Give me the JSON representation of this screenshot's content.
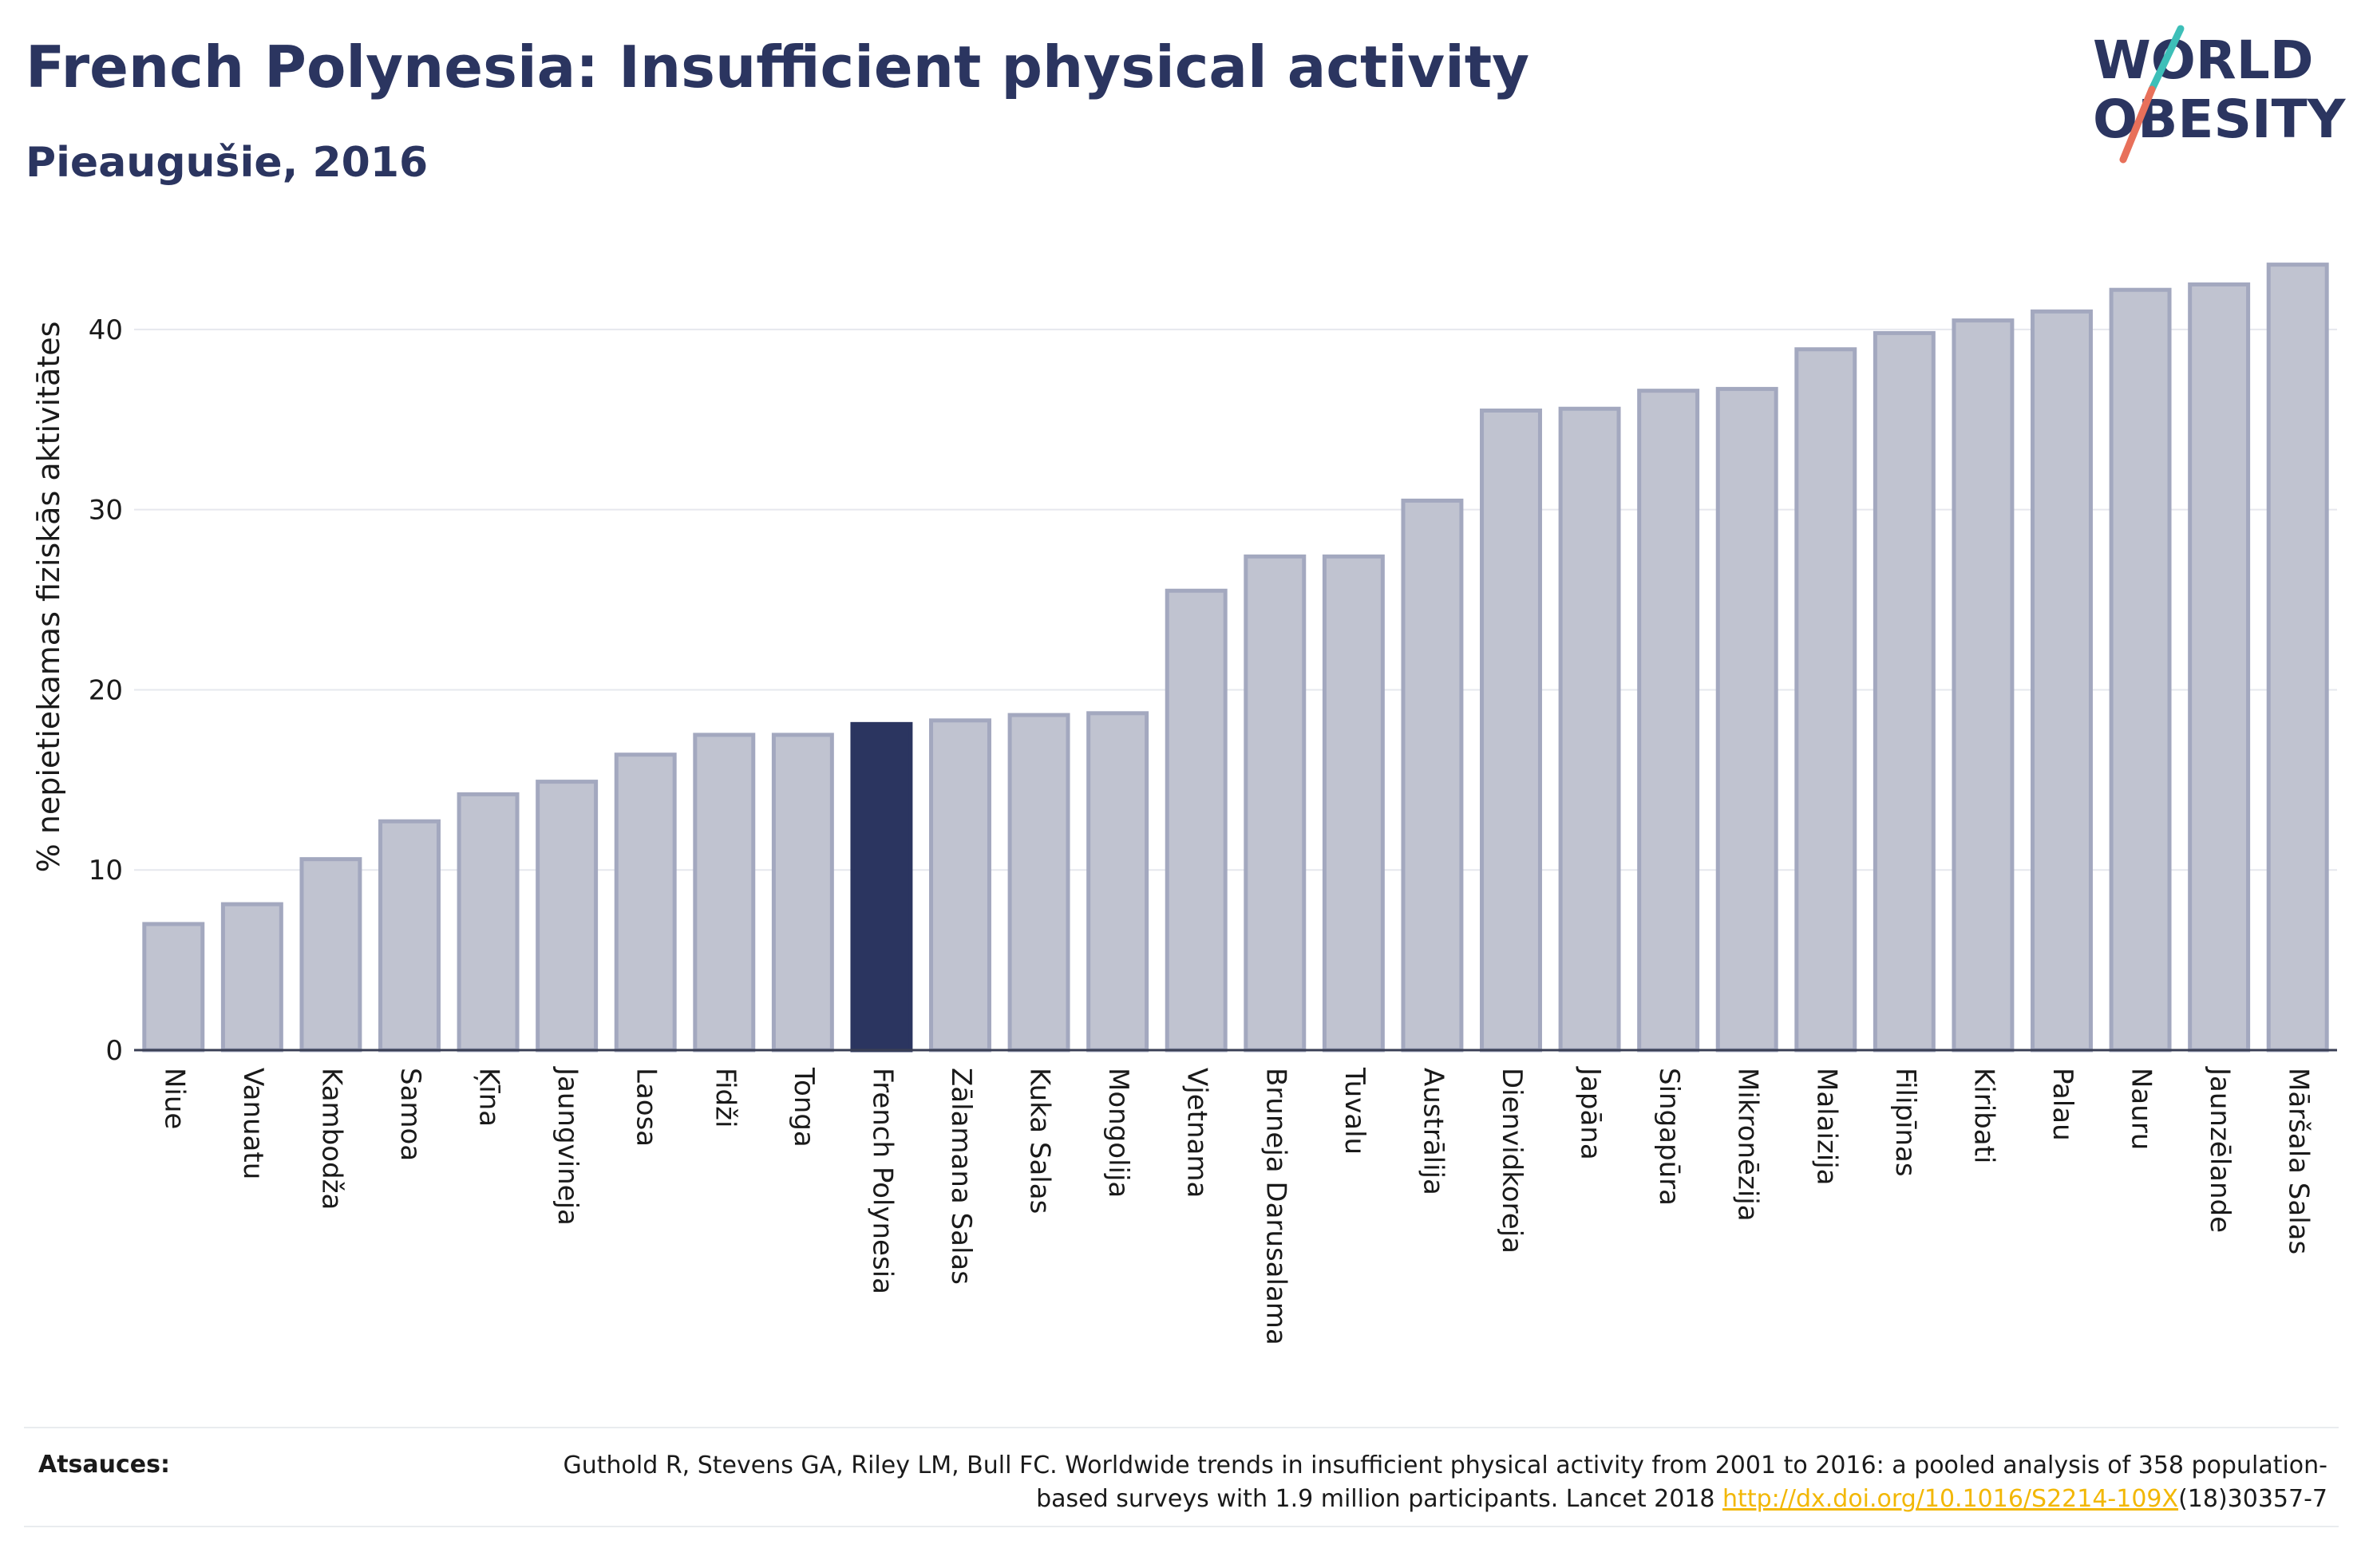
{
  "header": {
    "title": "French Polynesia: Insufficient physical activity",
    "subtitle": "Pieaugušie, 2016"
  },
  "logo": {
    "line1": "WORLD",
    "line2": "OBESITY",
    "slash_colors": [
      "#3dbfb8",
      "#e8705a"
    ]
  },
  "colors": {
    "bar": "#c0c3d0",
    "bar_border": "#a3a8bf",
    "highlight": "#2b3560",
    "title": "#2b3560",
    "link": "#f2b705"
  },
  "chart_data": {
    "type": "bar",
    "title": "French Polynesia: Insufficient physical activity",
    "subtitle": "Pieaugušie, 2016",
    "xlabel": "",
    "ylabel": "% nepietiekamas fiziskās aktivitātes",
    "ylim": [
      0,
      45
    ],
    "yticks": [
      0,
      10,
      20,
      30,
      40
    ],
    "grid": true,
    "highlight": "French Polynesia",
    "categories": [
      "Niue",
      "Vanuatu",
      "Kambodža",
      "Samoa",
      "Ķīna",
      "Jaungvineja",
      "Laosa",
      "Fidži",
      "Tonga",
      "French Polynesia",
      "Zālamana Salas",
      "Kuka Salas",
      "Mongolija",
      "Vjetnama",
      "Bruneja Darusalama",
      "Tuvalu",
      "Austrālija",
      "Dienvidkoreja",
      "Japāna",
      "Singapūra",
      "Mikronēzija",
      "Malaizija",
      "Filipīnas",
      "Kiribati",
      "Palau",
      "Nauru",
      "Jaunzēlande",
      "Māršala Salas"
    ],
    "values": [
      7.0,
      8.1,
      10.6,
      12.7,
      14.2,
      14.9,
      16.4,
      17.5,
      17.5,
      18.1,
      18.3,
      18.6,
      18.7,
      25.5,
      27.4,
      27.4,
      30.5,
      35.5,
      35.6,
      36.6,
      36.7,
      38.9,
      39.8,
      40.5,
      41.0,
      42.2,
      42.5,
      43.6
    ]
  },
  "footer": {
    "sources_label": "Atsauces:",
    "citation_part1": "Guthold R, Stevens GA, Riley LM, Bull FC. Worldwide trends in insufficient physical activity from 2001 to 2016: a pooled analysis of 358 population-based surveys with 1.9 million participants. Lancet 2018 ",
    "citation_link": "http://dx.doi.org/10.1016/S2214-109X",
    "citation_part2": "(18)30357-7"
  }
}
